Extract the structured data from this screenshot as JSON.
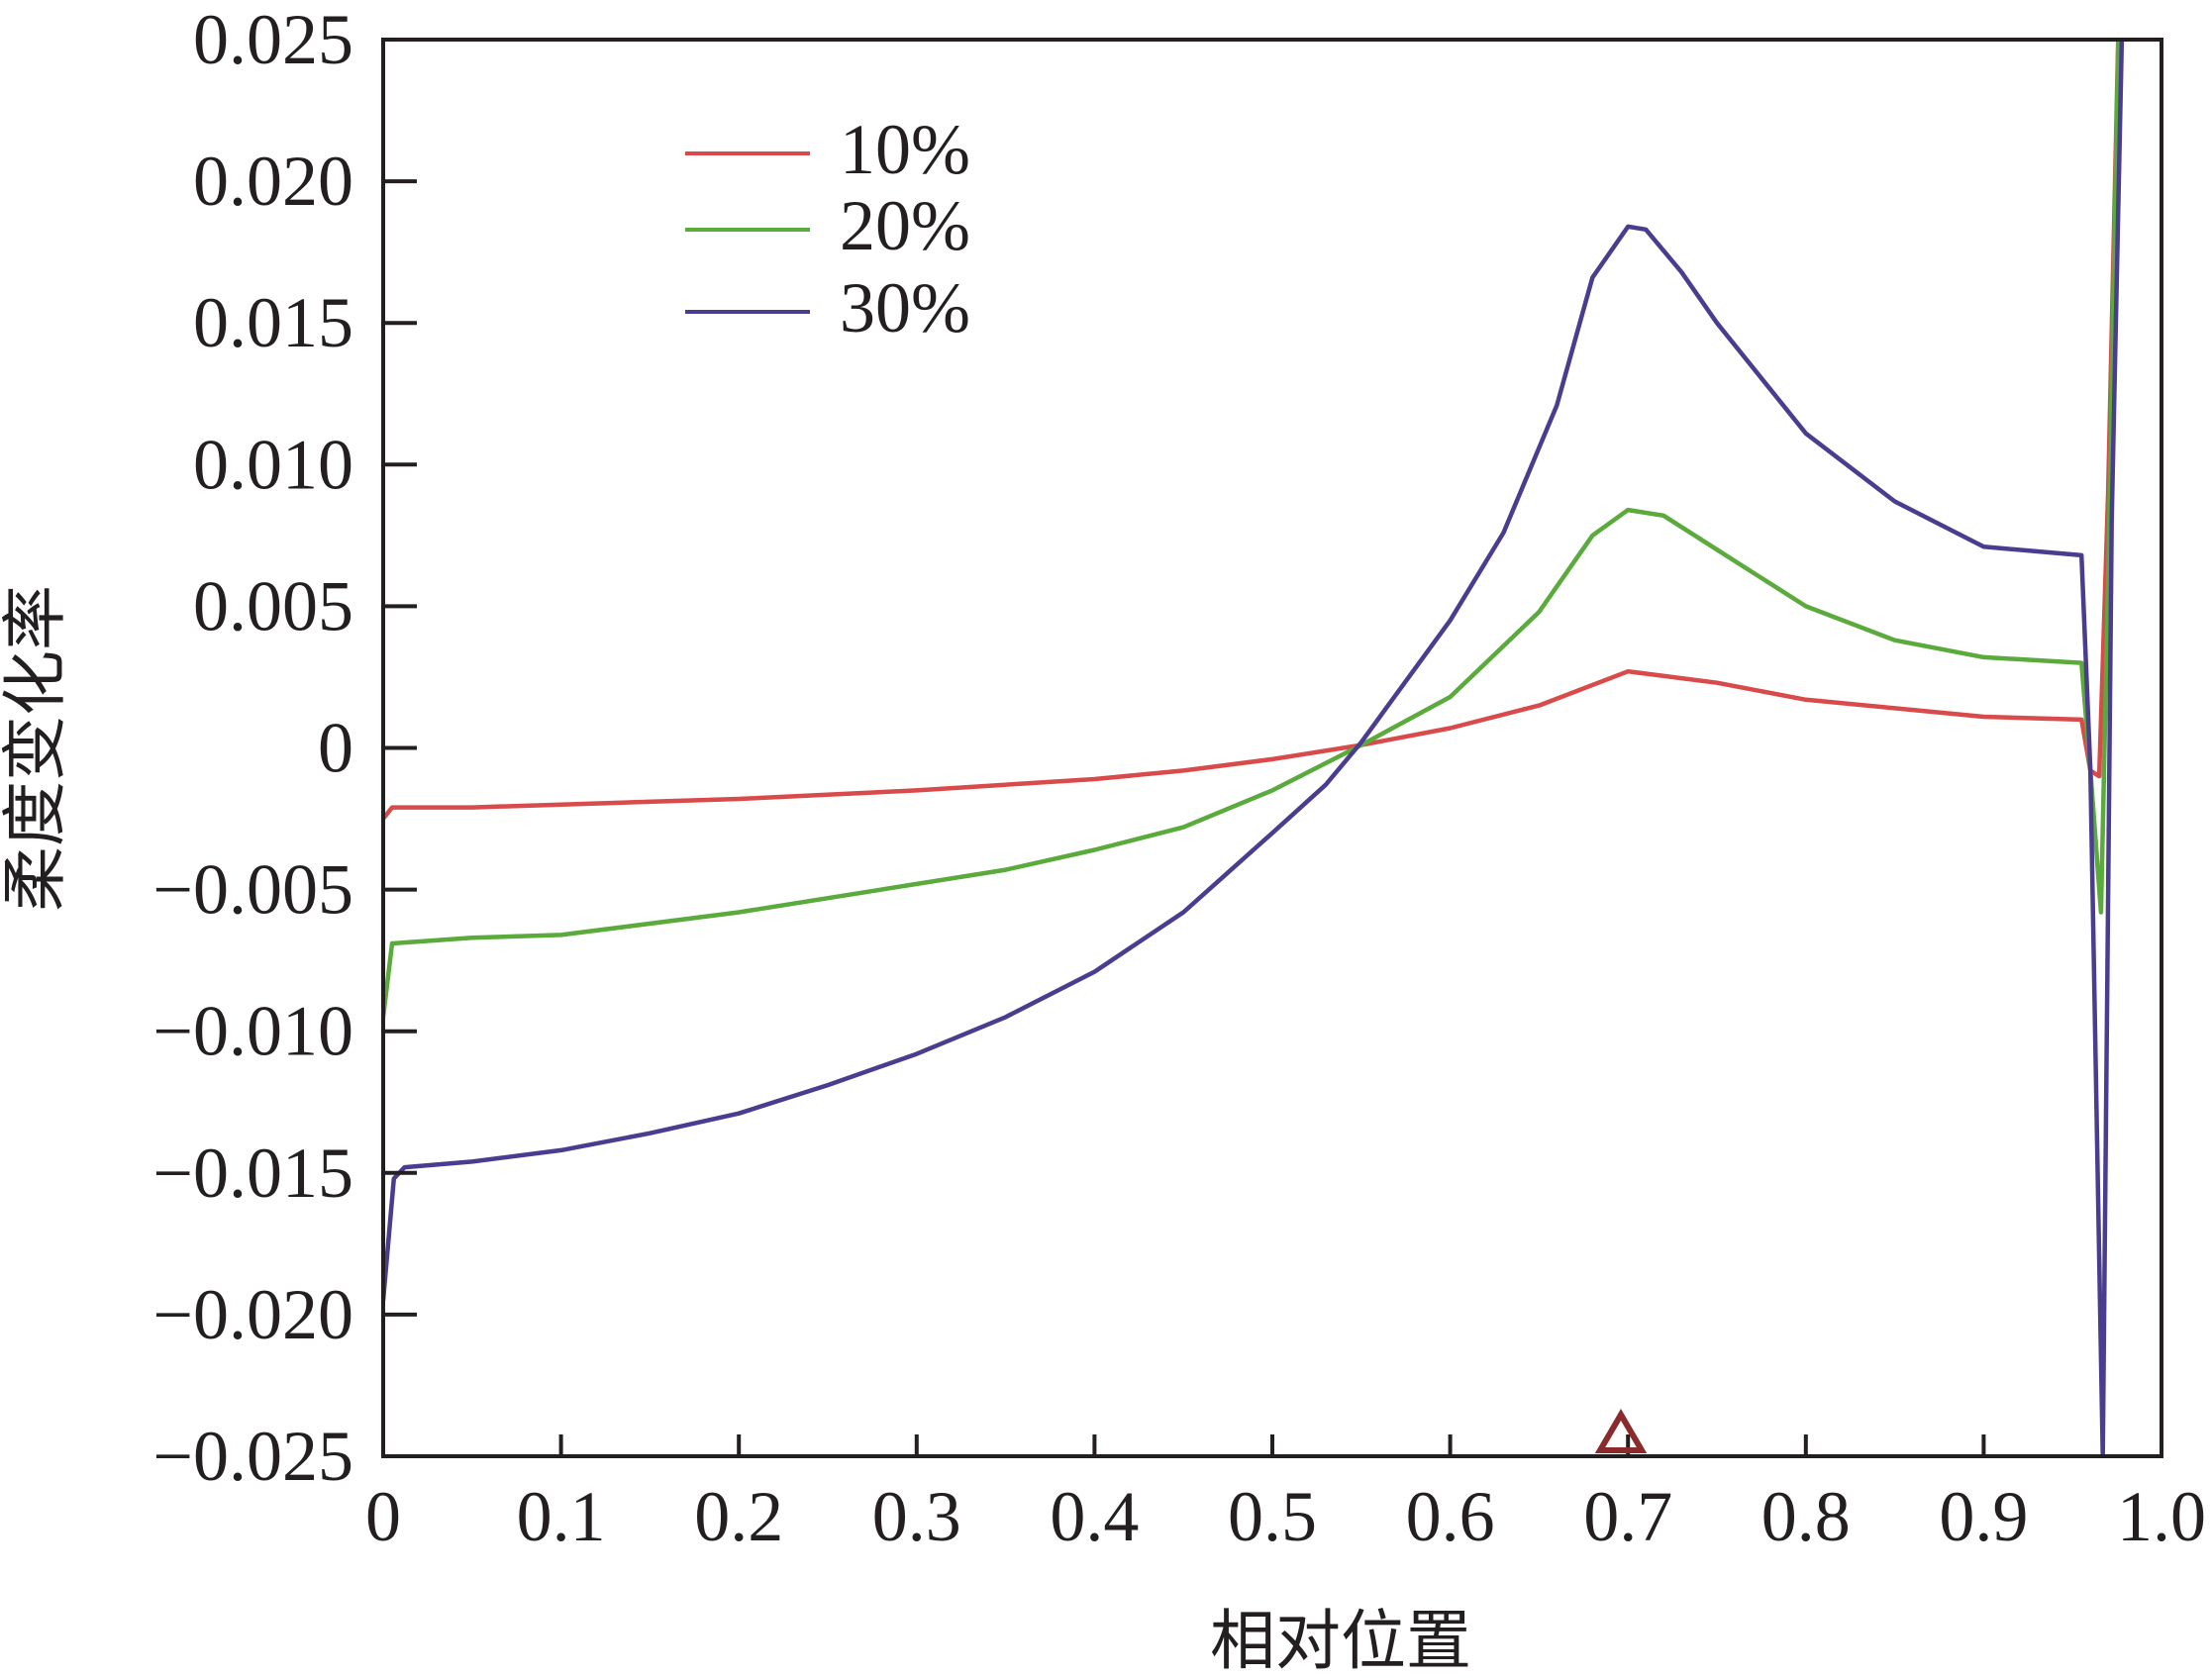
{
  "chart_data": {
    "type": "line",
    "title": "",
    "xlabel": "相对位置",
    "ylabel": "柔度变化率",
    "xlim": [
      0,
      1.0
    ],
    "ylim": [
      -0.025,
      0.025
    ],
    "x_ticks": [
      "0",
      "0.1",
      "0.2",
      "0.3",
      "0.4",
      "0.5",
      "0.6",
      "0.7",
      "0.8",
      "0.9",
      "1.0"
    ],
    "y_ticks": [
      "0.025",
      "0.020",
      "0.015",
      "0.010",
      "0.005",
      "0",
      "−0.005",
      "−0.010",
      "−0.015",
      "−0.020",
      "−0.025"
    ],
    "grid": false,
    "legend_position": "top-left",
    "marker_at": 0.696,
    "marker_color": "#8b2a2a",
    "series": [
      {
        "name": "10%",
        "color": "#d94a4a",
        "points": [
          [
            0.0,
            -0.0025
          ],
          [
            0.005,
            -0.0021
          ],
          [
            0.05,
            -0.0021
          ],
          [
            0.1,
            -0.002
          ],
          [
            0.2,
            -0.0018
          ],
          [
            0.3,
            -0.0015
          ],
          [
            0.4,
            -0.0011
          ],
          [
            0.45,
            -0.0008
          ],
          [
            0.5,
            -0.0004
          ],
          [
            0.55,
            0.0001
          ],
          [
            0.6,
            0.0007
          ],
          [
            0.65,
            0.0015
          ],
          [
            0.7,
            0.0027
          ],
          [
            0.75,
            0.0023
          ],
          [
            0.8,
            0.0017
          ],
          [
            0.85,
            0.0014
          ],
          [
            0.9,
            0.0011
          ],
          [
            0.955,
            0.001
          ],
          [
            0.96,
            -0.0008
          ],
          [
            0.965,
            -0.001
          ],
          [
            0.97,
            0.009
          ],
          [
            0.976,
            0.026
          ]
        ]
      },
      {
        "name": "20%",
        "color": "#5aaa3c",
        "points": [
          [
            0.0,
            -0.0095
          ],
          [
            0.005,
            -0.0069
          ],
          [
            0.05,
            -0.0067
          ],
          [
            0.1,
            -0.0066
          ],
          [
            0.2,
            -0.0058
          ],
          [
            0.3,
            -0.0048
          ],
          [
            0.35,
            -0.0043
          ],
          [
            0.4,
            -0.0036
          ],
          [
            0.45,
            -0.0028
          ],
          [
            0.5,
            -0.0015
          ],
          [
            0.55,
            0.0001
          ],
          [
            0.6,
            0.0018
          ],
          [
            0.65,
            0.0048
          ],
          [
            0.68,
            0.0075
          ],
          [
            0.7,
            0.0084
          ],
          [
            0.72,
            0.0082
          ],
          [
            0.75,
            0.007
          ],
          [
            0.8,
            0.005
          ],
          [
            0.85,
            0.0038
          ],
          [
            0.9,
            0.0032
          ],
          [
            0.955,
            0.003
          ],
          [
            0.96,
            -0.0008
          ],
          [
            0.966,
            -0.0058
          ],
          [
            0.97,
            0.006
          ],
          [
            0.976,
            0.026
          ]
        ]
      },
      {
        "name": "30%",
        "color": "#4a3d8f",
        "points": [
          [
            0.0,
            -0.0195
          ],
          [
            0.006,
            -0.0152
          ],
          [
            0.012,
            -0.0148
          ],
          [
            0.05,
            -0.0146
          ],
          [
            0.1,
            -0.0142
          ],
          [
            0.15,
            -0.0136
          ],
          [
            0.2,
            -0.0129
          ],
          [
            0.25,
            -0.0119
          ],
          [
            0.3,
            -0.0108
          ],
          [
            0.35,
            -0.0095
          ],
          [
            0.4,
            -0.0079
          ],
          [
            0.45,
            -0.0058
          ],
          [
            0.5,
            -0.003
          ],
          [
            0.53,
            -0.0013
          ],
          [
            0.55,
            0.0002
          ],
          [
            0.6,
            0.0045
          ],
          [
            0.63,
            0.0076
          ],
          [
            0.66,
            0.0121
          ],
          [
            0.68,
            0.0166
          ],
          [
            0.7,
            0.0184
          ],
          [
            0.71,
            0.0183
          ],
          [
            0.73,
            0.0168
          ],
          [
            0.75,
            0.015
          ],
          [
            0.8,
            0.0111
          ],
          [
            0.85,
            0.0087
          ],
          [
            0.9,
            0.0071
          ],
          [
            0.955,
            0.0068
          ],
          [
            0.96,
            -0.0008
          ],
          [
            0.967,
            -0.025
          ],
          [
            0.972,
            0.008
          ],
          [
            0.978,
            0.026
          ]
        ]
      }
    ]
  }
}
